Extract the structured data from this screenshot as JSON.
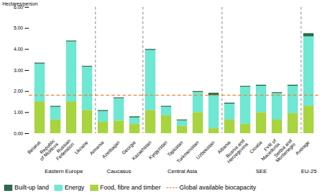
{
  "chart_data": {
    "type": "bar",
    "stacked": true,
    "categories": [
      "Belarus",
      "Republic\nof Moldova",
      "Russian\nFederation",
      "Ukraine",
      "Armenia",
      "Azerbaijan",
      "Georgia",
      "Kazakhstan",
      "Kyrgyzstan",
      "Tajikistan",
      "Turkmenistan",
      "Uzbekistan",
      "Albania",
      "Bosnia and\nHerzegovina",
      "Croatia",
      "FYR of\nMacedonia",
      "Serbia and\nMontenegro",
      "Average"
    ],
    "series": [
      {
        "name": "Built-up land",
        "color": "#2d6b4a",
        "values": [
          0.05,
          0.05,
          0.05,
          0.05,
          0.05,
          0.05,
          0.05,
          0.05,
          0.05,
          0.05,
          0.05,
          0.12,
          0.05,
          0.05,
          0.05,
          0.05,
          0.05,
          0.15
        ]
      },
      {
        "name": "Energy",
        "color": "#6ee8d2",
        "values": [
          1.8,
          0.6,
          2.85,
          2.05,
          0.5,
          1.05,
          0.3,
          2.85,
          0.4,
          0.25,
          0.95,
          1.55,
          0.75,
          1.75,
          1.25,
          1.25,
          1.3,
          3.3
        ]
      },
      {
        "name": "Food, fibre and timber",
        "color": "#a8d440",
        "values": [
          1.5,
          0.65,
          1.5,
          1.1,
          0.55,
          0.6,
          0.45,
          1.1,
          0.85,
          0.35,
          1.0,
          0.25,
          0.65,
          0.45,
          1.0,
          0.65,
          0.95,
          1.3
        ]
      }
    ],
    "hlines": [
      {
        "name": "Global available biocapacity",
        "value": 1.82,
        "color": "#e8823c",
        "line_style": "dashed"
      }
    ],
    "groups": [
      {
        "label": "Eastern Europe",
        "first": "Belarus",
        "last": "Ukraine"
      },
      {
        "label": "Caucasus",
        "first": "Armenia",
        "last": "Georgia"
      },
      {
        "label": "Central Asia",
        "first": "Kazakhstan",
        "last": "Uzbekistan"
      },
      {
        "label": "SEE",
        "first": "Albania",
        "last": "Serbia and\nMontenegro"
      },
      {
        "label": "EU-25",
        "first": "Average",
        "last": "Average"
      }
    ],
    "ylabel": "Hectares/person",
    "ylim": [
      0,
      6.0
    ],
    "yticks": [
      {
        "value": 0.0,
        "label": "0.00"
      },
      {
        "value": 1.0,
        "label": "1.00"
      },
      {
        "value": 2.0,
        "label": "2.00"
      },
      {
        "value": 3.0,
        "label": "3.00"
      },
      {
        "value": 4.0,
        "label": "4.00"
      },
      {
        "value": 5.0,
        "label": "5.00"
      },
      {
        "value": 6.0,
        "label": "6.00"
      }
    ],
    "grid": false,
    "legend": "bottom"
  }
}
